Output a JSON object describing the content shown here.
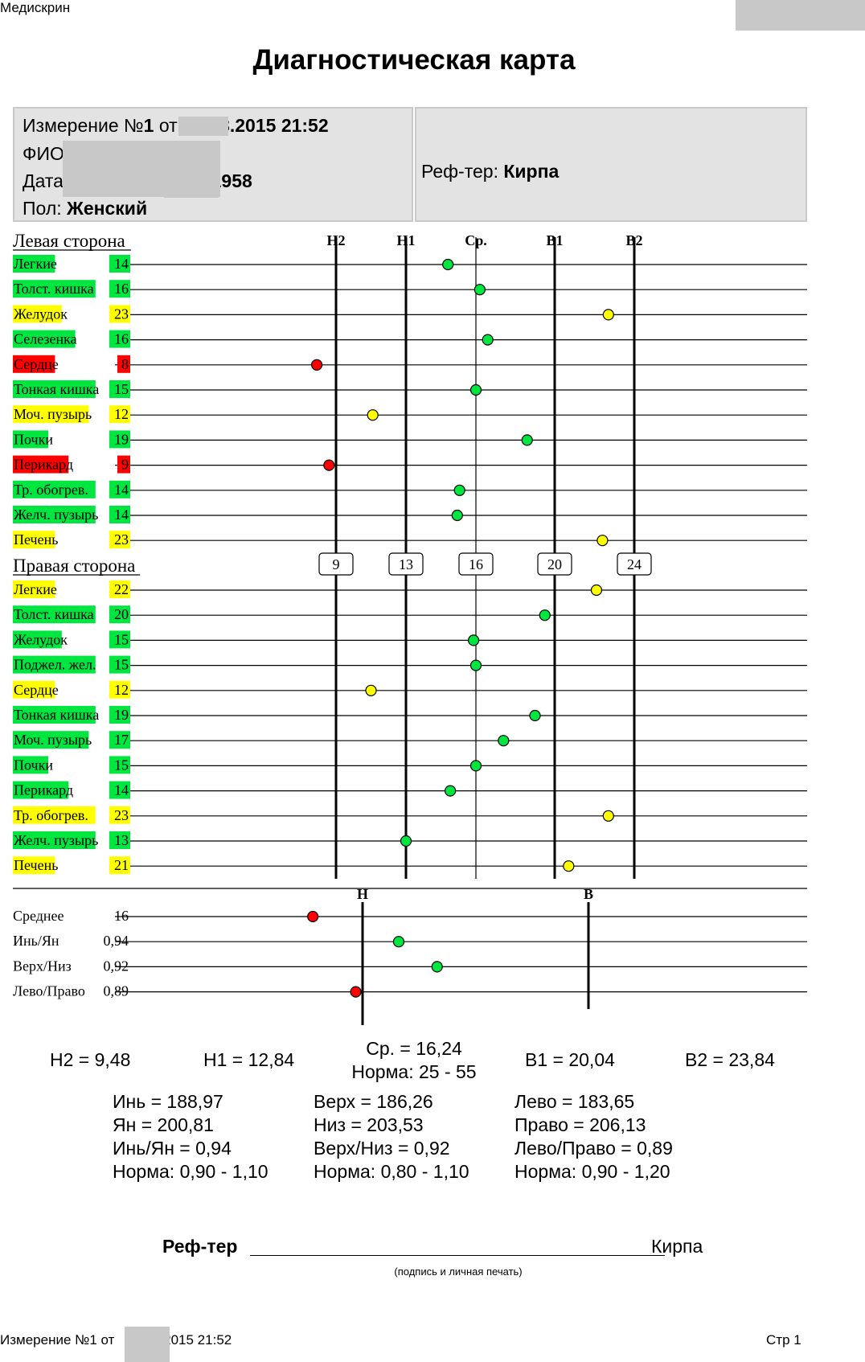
{
  "header": {
    "app_name": "Медискрин",
    "title": "Диагностическая карта"
  },
  "info": {
    "measurement_label": "Измерение №",
    "measurement_number": "1",
    "measurement_from": "от",
    "measurement_tail": ".3.2015 21:52",
    "fio_label": "ФИО",
    "birth_label": "Дата рождения",
    "birth_tail": ".1958",
    "sex_label": "Пол:",
    "sex_value": "Женский",
    "ref_label": "Реф-тер:",
    "ref_value": "Кирпа"
  },
  "chart_data": {
    "type": "scatter",
    "axis_labels": [
      "Н2",
      "Н1",
      "Ср.",
      "В1",
      "В2"
    ],
    "axis_values": [
      "9",
      "13",
      "16",
      "20",
      "24"
    ],
    "axis_numeric": [
      9,
      13,
      16,
      20,
      24
    ],
    "left_title": "Левая сторона",
    "right_title": "Правая сторона",
    "colors": {
      "green": "#00e640",
      "yellow": "#ffff00",
      "red": "#ff0000"
    },
    "left": [
      {
        "name": "Легкие",
        "value": "14",
        "x": 14.8,
        "status": "green"
      },
      {
        "name": "Толст. кишка",
        "value": "16",
        "x": 16.2,
        "status": "green"
      },
      {
        "name": "Желудок",
        "value": "23",
        "x": 22.7,
        "status": "yellow"
      },
      {
        "name": "Селезенка",
        "value": "16",
        "x": 16.6,
        "status": "green"
      },
      {
        "name": "Сердце",
        "value": "8",
        "x": 7.9,
        "status": "red"
      },
      {
        "name": "Тонкая кишка",
        "value": "15",
        "x": 16.0,
        "status": "green"
      },
      {
        "name": "Моч. пузырь",
        "value": "12",
        "x": 11.1,
        "status": "yellow"
      },
      {
        "name": "Почки",
        "value": "19",
        "x": 18.6,
        "status": "green"
      },
      {
        "name": "Перикард",
        "value": "9",
        "x": 8.6,
        "status": "red"
      },
      {
        "name": "Тр. обогрев.",
        "value": "14",
        "x": 15.3,
        "status": "green"
      },
      {
        "name": "Желч. пузырь",
        "value": "14",
        "x": 15.2,
        "status": "green"
      },
      {
        "name": "Печень",
        "value": "23",
        "x": 22.4,
        "status": "yellow"
      }
    ],
    "right": [
      {
        "name": "Легкие",
        "value": "22",
        "x": 22.1,
        "status": "yellow"
      },
      {
        "name": "Толст. кишка",
        "value": "20",
        "x": 19.5,
        "status": "green"
      },
      {
        "name": "Желудок",
        "value": "15",
        "x": 15.9,
        "status": "green"
      },
      {
        "name": "Поджел. жел.",
        "value": "15",
        "x": 16.0,
        "status": "green"
      },
      {
        "name": "Сердце",
        "value": "12",
        "x": 11.0,
        "status": "yellow"
      },
      {
        "name": "Тонкая кишка",
        "value": "19",
        "x": 19.0,
        "status": "green"
      },
      {
        "name": "Моч. пузырь",
        "value": "17",
        "x": 17.4,
        "status": "green"
      },
      {
        "name": "Почки",
        "value": "15",
        "x": 16.0,
        "status": "green"
      },
      {
        "name": "Перикард",
        "value": "14",
        "x": 14.9,
        "status": "green"
      },
      {
        "name": "Тр. обогрев.",
        "value": "23",
        "x": 22.7,
        "status": "yellow"
      },
      {
        "name": "Желч. пузырь",
        "value": "13",
        "x": 13.0,
        "status": "green"
      },
      {
        "name": "Печень",
        "value": "21",
        "x": 20.7,
        "status": "yellow"
      }
    ],
    "summary_axis": [
      "Н",
      "В"
    ],
    "summary": [
      {
        "name": "Среднее",
        "value": "16",
        "pos": -0.22,
        "status": "red"
      },
      {
        "name": "Инь/Ян",
        "value": "0,94",
        "pos": 0.16,
        "status": "green"
      },
      {
        "name": "Верх/Низ",
        "value": "0,92",
        "pos": 0.33,
        "status": "green"
      },
      {
        "name": "Лево/Право",
        "value": "0,89",
        "pos": -0.03,
        "status": "red"
      }
    ]
  },
  "stats": {
    "n2": "Н2 = 9,48",
    "n1": "Н1 = 12,84",
    "avg": "Ср. = 16,24",
    "avg_norm": "Норма: 25 - 55",
    "v1": "В1 = 20,04",
    "v2": "В2 = 23,84",
    "yin": "Инь = 188,97",
    "yan": "Ян = 200,81",
    "yin_yan": "Инь/Ян = 0,94",
    "yin_yan_norm": "Норма: 0,90 - 1,10",
    "top": "Верх = 186,26",
    "bottom": "Низ = 203,53",
    "top_bottom": "Верх/Низ = 0,92",
    "top_bottom_norm": "Норма: 0,80 - 1,10",
    "left": "Лево = 183,65",
    "right": "Право = 206,13",
    "left_right": "Лево/Право = 0,89",
    "left_right_norm": "Норма: 0,90 - 1,20"
  },
  "signature": {
    "label": "Реф-тер",
    "name": "Кирпа",
    "caption": "(подпись и личная печать)"
  },
  "footer": {
    "measurement_prefix": "Измерение №1 от",
    "measurement_tail": ".2015 21:52",
    "page": "Стр 1"
  }
}
